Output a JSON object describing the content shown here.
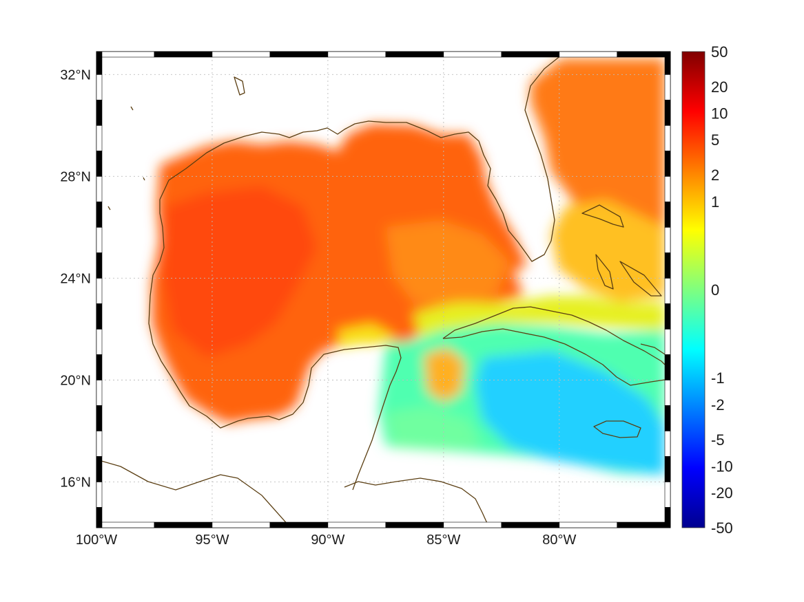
{
  "map": {
    "lon_range": [
      -100,
      -75.2
    ],
    "lat_range": [
      14.2,
      32.9
    ],
    "lon_ticks": [
      {
        "value": -100,
        "label": "100°W"
      },
      {
        "value": -95,
        "label": "95°W"
      },
      {
        "value": -90,
        "label": "90°W"
      },
      {
        "value": -85,
        "label": "85°W"
      },
      {
        "value": -80,
        "label": "80°W"
      }
    ],
    "lat_ticks": [
      {
        "value": 16,
        "label": "16°N"
      },
      {
        "value": 20,
        "label": "20°N"
      },
      {
        "value": 24,
        "label": "24°N"
      },
      {
        "value": 28,
        "label": "28°N"
      },
      {
        "value": 32,
        "label": "32°N"
      }
    ],
    "grid": true,
    "coastline_color": "#5a3e12",
    "frame": "black-and-white checkered border"
  },
  "colorbar": {
    "colormap": "jet",
    "scale": "symmetric log",
    "range": [
      -50,
      50
    ],
    "tick_labels": [
      "50",
      "20",
      "10",
      "5",
      "2",
      "1",
      "0",
      "-1",
      "-2",
      "-5",
      "-10",
      "-20",
      "-50"
    ]
  },
  "field": {
    "description_values": "gulf interior roughly 5-10, caribbean near 0 to -5, atlantic east of florida 3-8"
  }
}
